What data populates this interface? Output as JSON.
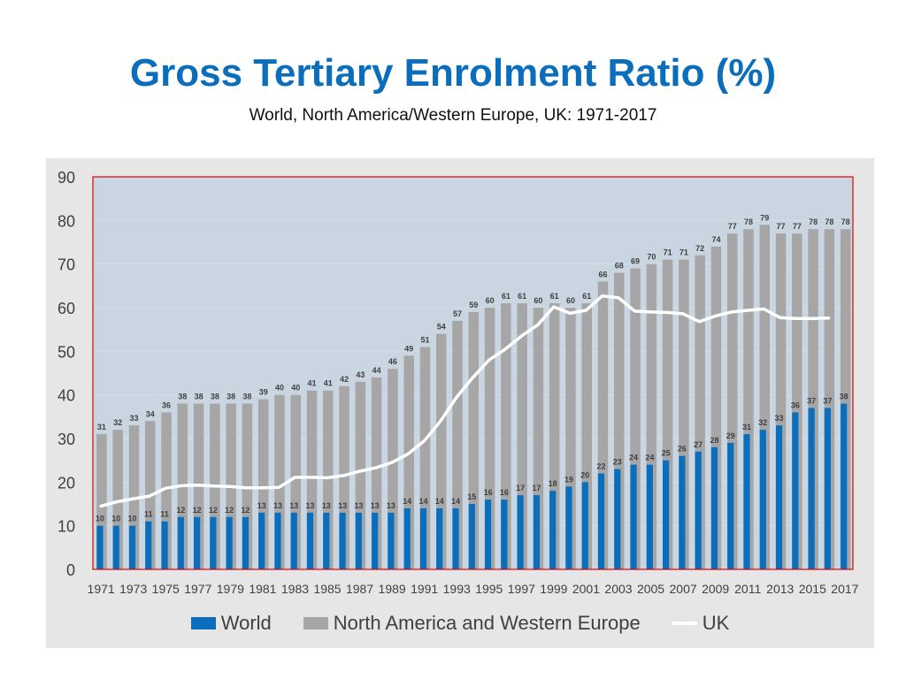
{
  "title": "Gross Tertiary Enrolment Ratio (%)",
  "subtitle": "World, North America/Western Europe, UK: 1971-2017",
  "colors": {
    "world": "#0a6ebd",
    "nawe": "#a6a6a6",
    "uk": "#ffffff",
    "plot_bg": "#c9d6e1",
    "plot_border": "#e00000",
    "outer_bg": "#e6e6e6"
  },
  "chart_data": {
    "type": "bar",
    "title": "Gross Tertiary Enrolment Ratio (%)",
    "subtitle": "World, North America/Western Europe, UK: 1971-2017",
    "xlabel": "",
    "ylabel": "",
    "ylim": [
      0,
      90
    ],
    "yticks": [
      0,
      10,
      20,
      30,
      40,
      50,
      60,
      70,
      80,
      90
    ],
    "grid": true,
    "legend_position": "bottom",
    "x": [
      1971,
      1972,
      1973,
      1974,
      1975,
      1976,
      1977,
      1978,
      1979,
      1980,
      1981,
      1982,
      1983,
      1984,
      1985,
      1986,
      1987,
      1988,
      1989,
      1990,
      1991,
      1992,
      1993,
      1994,
      1995,
      1996,
      1997,
      1998,
      1999,
      2000,
      2001,
      2002,
      2003,
      2004,
      2005,
      2006,
      2007,
      2008,
      2009,
      2010,
      2011,
      2012,
      2013,
      2014,
      2015,
      2016,
      2017
    ],
    "x_tick_labels": [
      "1971",
      "1973",
      "1975",
      "1977",
      "1979",
      "1981",
      "1983",
      "1985",
      "1987",
      "1989",
      "1991",
      "1993",
      "1995",
      "1997",
      "1999",
      "2001",
      "2003",
      "2005",
      "2007",
      "2009",
      "2011",
      "2013",
      "2015",
      "2017"
    ],
    "series": [
      {
        "name": "World",
        "kind": "bar",
        "values": [
          10,
          10,
          10,
          11,
          11,
          12,
          12,
          12,
          12,
          12,
          13,
          13,
          13,
          13,
          13,
          13,
          13,
          13,
          13,
          14,
          14,
          14,
          14,
          15,
          16,
          16,
          17,
          17,
          18,
          19,
          20,
          22,
          23,
          24,
          24,
          25,
          26,
          27,
          28,
          29,
          31,
          32,
          33,
          36,
          37,
          37,
          38
        ]
      },
      {
        "name": "North America and Western Europe",
        "kind": "bar",
        "values": [
          31,
          32,
          33,
          34,
          36,
          38,
          38,
          38,
          38,
          38,
          39,
          40,
          40,
          41,
          41,
          42,
          43,
          44,
          46,
          49,
          51,
          54,
          57,
          59,
          60,
          61,
          61,
          60,
          61,
          60,
          61,
          66,
          68,
          69,
          70,
          71,
          71,
          72,
          74,
          77,
          78,
          79,
          77,
          77,
          78,
          78,
          78
        ]
      },
      {
        "name": "UK",
        "kind": "line",
        "values": [
          14.5,
          15.5,
          16.2,
          16.8,
          18.6,
          19.2,
          19.3,
          19.1,
          19.0,
          18.7,
          18.7,
          18.8,
          21.1,
          21.1,
          21.0,
          21.5,
          22.5,
          23.3,
          24.5,
          26.5,
          29.5,
          34.0,
          39.5,
          44.0,
          48.0,
          50.5,
          53.5,
          56.0,
          60.2,
          58.7,
          59.4,
          62.7,
          62.3,
          59.2,
          59.0,
          58.9,
          58.6,
          56.8,
          58.1,
          59.0,
          59.4,
          59.7,
          57.7,
          57.5,
          57.5,
          57.6,
          null
        ]
      }
    ],
    "legend": [
      "World",
      "North America and Western Europe",
      "UK"
    ]
  }
}
